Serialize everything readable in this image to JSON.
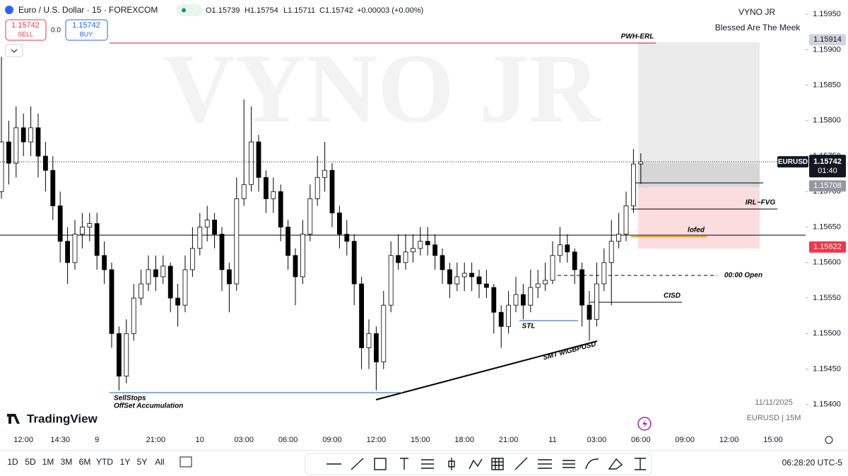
{
  "header": {
    "symbol": "Euro / U.S. Dollar · 15 · FOREXCOM",
    "ohlc": [
      "O1.15739",
      "H1.15754",
      "L1.15711",
      "C1.15742",
      "+0.00003 (+0.00%)"
    ],
    "sell_price": "1.15742",
    "sell": "SELL",
    "spread": "0.0",
    "buy_price": "1.15742",
    "buy": "BUY"
  },
  "branding": {
    "watermark": "VYNO JR",
    "author": "VYNO JR",
    "motto": "Blessed Are The Meek",
    "logo": "TradingView",
    "date": "11/11/2025",
    "instrument": "EURUSD | 15M"
  },
  "annotations": [
    "PWH-ERL",
    "IRL~FVG",
    "lofed",
    "00:00 Open",
    "CISD",
    "STL",
    "SMT w\\GBPUSD",
    "SellStops",
    "OffSet Accumulation"
  ],
  "chart_data": {
    "type": "candlestick",
    "up_color": "#ffffff",
    "down_color": "#000000",
    "grid": false,
    "categories": [
      null,
      null,
      null,
      "12:00",
      null,
      null,
      null,
      null,
      "14:30",
      null,
      null,
      null,
      null,
      "9",
      null,
      null,
      null,
      null,
      null,
      null,
      null,
      "21:00",
      null,
      null,
      null,
      null,
      null,
      "10",
      null,
      null,
      null,
      null,
      null,
      "03:00",
      null,
      null,
      null,
      null,
      null,
      "06:00",
      null,
      null,
      null,
      null,
      null,
      "09:00",
      null,
      null,
      null,
      null,
      null,
      "12:00",
      null,
      null,
      null,
      null,
      null,
      "15:00",
      null,
      null,
      null,
      null,
      null,
      "18:00",
      null,
      null,
      null,
      null,
      null,
      "21:00",
      null,
      null,
      null,
      null,
      null,
      "11",
      null,
      null,
      null,
      null,
      null,
      "03:00",
      null,
      null,
      null,
      null,
      null,
      "06:00",
      null,
      null,
      null,
      null,
      null,
      "09:00",
      null,
      null,
      null,
      null,
      null,
      "12:00",
      null,
      null,
      null,
      null,
      null,
      "15:00"
    ],
    "open": [
      1.157,
      1.1577,
      1.1574,
      1.1579,
      1.1577,
      1.1579,
      1.1575,
      1.1573,
      1.1568,
      1.1563,
      1.156,
      1.1564,
      1.1565,
      1.15655,
      1.1561,
      1.1559,
      1.155,
      1.1544,
      1.155,
      1.1555,
      1.1557,
      1.1559,
      1.1558,
      1.15595,
      1.1555,
      1.1554,
      1.1559,
      1.1562,
      1.1565,
      1.1566,
      1.1564,
      1.1559,
      1.1557,
      1.1569,
      1.1571,
      1.1577,
      1.1572,
      1.1569,
      1.157,
      1.1565,
      1.1561,
      1.1558,
      1.1564,
      1.1569,
      1.1572,
      1.1573,
      1.1567,
      1.1564,
      1.1563,
      1.1557,
      1.1548,
      1.155,
      1.1546,
      1.1554,
      1.1561,
      1.156,
      1.15615,
      1.1562,
      1.1563,
      1.15625,
      1.1561,
      1.1559,
      1.1557,
      1.1558,
      1.15585,
      1.1558,
      1.1557,
      1.15565,
      1.1553,
      1.1551,
      1.1554,
      1.15555,
      1.1554,
      1.15565,
      1.1557,
      1.15575,
      1.1561,
      1.15625,
      1.15615,
      1.1559,
      1.1554,
      1.1552,
      1.1557,
      1.156,
      1.1563,
      1.1564,
      1.1568,
      1.15739,
      null,
      null,
      null,
      null,
      null,
      null,
      null,
      null,
      null,
      null,
      null,
      null,
      null,
      null,
      null,
      null,
      null,
      null
    ],
    "high": [
      1.1589,
      1.158,
      1.1582,
      1.1581,
      1.1582,
      1.1581,
      1.1577,
      1.1575,
      1.157,
      1.1565,
      1.1566,
      1.1567,
      1.1567,
      1.1567,
      1.1563,
      1.156,
      1.1551,
      1.1552,
      1.1557,
      1.1559,
      1.1561,
      1.1561,
      1.1561,
      1.156,
      1.1557,
      1.1561,
      1.1565,
      1.1567,
      1.1568,
      1.1567,
      1.1565,
      1.156,
      1.1572,
      1.1583,
      1.1582,
      1.1578,
      1.1573,
      1.1572,
      1.1571,
      1.1566,
      1.1562,
      1.1566,
      1.1571,
      1.1575,
      1.1577,
      1.1574,
      1.1568,
      1.1566,
      1.1564,
      1.1558,
      1.1552,
      1.1551,
      1.1556,
      1.1563,
      1.1564,
      1.1564,
      1.1564,
      1.1565,
      1.1565,
      1.1564,
      1.1562,
      1.156,
      1.156,
      1.156,
      1.156,
      1.1559,
      1.1559,
      1.1557,
      1.1554,
      1.1556,
      1.1558,
      1.1557,
      1.1559,
      1.1559,
      1.156,
      1.1563,
      1.1565,
      1.1564,
      1.1562,
      1.156,
      1.1556,
      1.156,
      1.1562,
      1.1566,
      1.1567,
      1.157,
      1.1576,
      1.15754,
      null,
      null,
      null,
      null,
      null,
      null,
      null,
      null,
      null,
      null,
      null,
      null,
      null,
      null,
      null,
      null,
      null,
      null
    ],
    "low": [
      1.1569,
      1.1571,
      1.1572,
      1.1575,
      1.1575,
      1.1572,
      1.157,
      1.1566,
      1.156,
      1.1557,
      1.1559,
      1.1562,
      1.1563,
      1.1559,
      1.1557,
      1.1548,
      1.1542,
      1.1543,
      1.1549,
      1.1554,
      1.1556,
      1.1556,
      1.1557,
      1.1553,
      1.1551,
      1.1553,
      1.1558,
      1.1561,
      1.1563,
      1.1562,
      1.1556,
      1.1553,
      1.1556,
      1.1568,
      1.157,
      1.157,
      1.1567,
      1.1567,
      1.1563,
      1.1559,
      1.1554,
      1.1557,
      1.1563,
      1.1568,
      1.157,
      1.1565,
      1.1562,
      1.1561,
      1.1554,
      1.1545,
      1.1545,
      1.1542,
      1.1545,
      1.1553,
      1.1559,
      1.1559,
      1.156,
      1.1561,
      1.1561,
      1.1559,
      1.1557,
      1.1555,
      1.1556,
      1.1556,
      1.1556,
      1.1555,
      1.1555,
      1.155,
      1.1548,
      1.155,
      1.1553,
      1.1552,
      1.1553,
      1.1555,
      1.1556,
      1.1557,
      1.156,
      1.156,
      1.1557,
      1.1551,
      1.1549,
      1.1551,
      1.1556,
      1.1554,
      1.1562,
      1.1563,
      1.1567,
      1.15711,
      null,
      null,
      null,
      null,
      null,
      null,
      null,
      null,
      null,
      null,
      null,
      null,
      null,
      null,
      null,
      null,
      null,
      null
    ],
    "close": [
      1.1577,
      1.1574,
      1.1579,
      1.1577,
      1.1579,
      1.1575,
      1.1573,
      1.1568,
      1.1563,
      1.156,
      1.1564,
      1.1565,
      1.15655,
      1.1561,
      1.1559,
      1.155,
      1.1544,
      1.155,
      1.1555,
      1.1557,
      1.1559,
      1.1558,
      1.15595,
      1.1555,
      1.1554,
      1.1559,
      1.1562,
      1.1565,
      1.1566,
      1.1564,
      1.1559,
      1.1557,
      1.1569,
      1.1571,
      1.1577,
      1.1572,
      1.1569,
      1.157,
      1.1565,
      1.1561,
      1.1558,
      1.1564,
      1.1569,
      1.1572,
      1.1573,
      1.1567,
      1.1564,
      1.1563,
      1.1557,
      1.1548,
      1.155,
      1.1546,
      1.1554,
      1.1561,
      1.156,
      1.15615,
      1.1562,
      1.1563,
      1.15625,
      1.1561,
      1.1559,
      1.1557,
      1.1558,
      1.15585,
      1.1558,
      1.1557,
      1.15565,
      1.1553,
      1.1551,
      1.1554,
      1.15555,
      1.1554,
      1.15565,
      1.1557,
      1.15575,
      1.1561,
      1.15625,
      1.15615,
      1.1559,
      1.1554,
      1.1552,
      1.1557,
      1.156,
      1.1563,
      1.1564,
      1.1568,
      1.15739,
      1.15742,
      null,
      null,
      null,
      null,
      null,
      null,
      null,
      null,
      null,
      null,
      null,
      null,
      null,
      null,
      null,
      null,
      null,
      null
    ],
    "ylim": [
      1.15365,
      1.1597
    ],
    "yticks": [
      {
        "value": 1.1595,
        "label": "1.15950"
      },
      {
        "value": 1.159,
        "label": "1.15900"
      },
      {
        "value": 1.1585,
        "label": "1.15850"
      },
      {
        "value": 1.158,
        "label": "1.15800"
      },
      {
        "value": 1.1575,
        "label": "1.15750"
      },
      {
        "value": 1.157,
        "label": "1.15700"
      },
      {
        "value": 1.1565,
        "label": "1.15650"
      },
      {
        "value": 1.156,
        "label": "1.15600"
      },
      {
        "value": 1.1555,
        "label": "1.15550"
      },
      {
        "value": 1.155,
        "label": "1.15500"
      },
      {
        "value": 1.1545,
        "label": "1.15450"
      },
      {
        "value": 1.154,
        "label": "1.15400"
      }
    ],
    "price_labels": [
      {
        "value": 1.15914,
        "label": "1.15914",
        "color": "#d1d4dc",
        "text_color": "#131722"
      },
      {
        "value": 1.15708,
        "label": "1.15708",
        "color": "#9598a1",
        "text_color": "#ffffff"
      },
      {
        "value": 1.15622,
        "label": "1.15622",
        "color": "#f23645",
        "text_color": "#ffffff"
      }
    ],
    "last_price": {
      "symbol": "EURUSD",
      "value": 1.15742,
      "label": "1.15742",
      "countdown": "01:40"
    }
  },
  "toolbar": {
    "ranges": [
      "1D",
      "5D",
      "1M",
      "3M",
      "6M",
      "YTD",
      "1Y",
      "5Y",
      "All"
    ],
    "clock": "06:28:20 UTC-5"
  }
}
